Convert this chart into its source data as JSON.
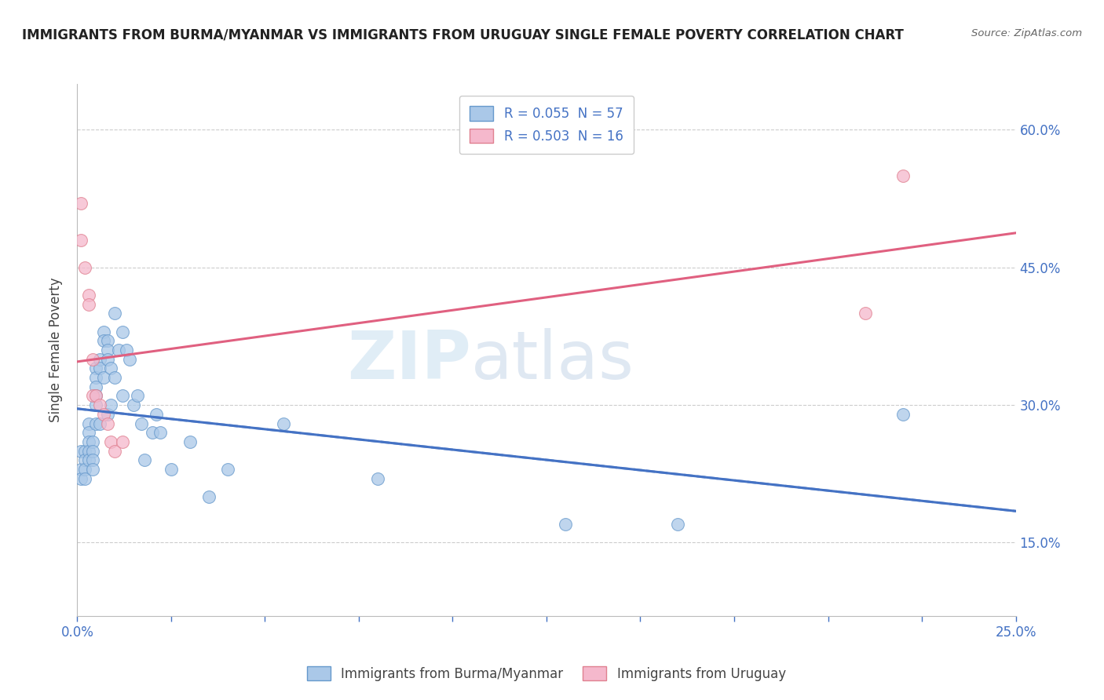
{
  "title": "IMMIGRANTS FROM BURMA/MYANMAR VS IMMIGRANTS FROM URUGUAY SINGLE FEMALE POVERTY CORRELATION CHART",
  "source": "Source: ZipAtlas.com",
  "ylabel": "Single Female Poverty",
  "yaxis_labels": [
    "15.0%",
    "30.0%",
    "45.0%",
    "60.0%"
  ],
  "legend_entries": [
    "R = 0.055  N = 57",
    "R = 0.503  N = 16"
  ],
  "legend_item_labels": [
    "Immigrants from Burma/Myanmar",
    "Immigrants from Uruguay"
  ],
  "watermark_zip": "ZIP",
  "watermark_atlas": "atlas",
  "burma_x": [
    0.001,
    0.001,
    0.001,
    0.002,
    0.002,
    0.002,
    0.002,
    0.003,
    0.003,
    0.003,
    0.003,
    0.003,
    0.004,
    0.004,
    0.004,
    0.004,
    0.005,
    0.005,
    0.005,
    0.005,
    0.005,
    0.005,
    0.006,
    0.006,
    0.006,
    0.007,
    0.007,
    0.007,
    0.008,
    0.008,
    0.008,
    0.008,
    0.009,
    0.009,
    0.01,
    0.01,
    0.011,
    0.012,
    0.012,
    0.013,
    0.014,
    0.015,
    0.016,
    0.017,
    0.018,
    0.02,
    0.021,
    0.022,
    0.025,
    0.03,
    0.035,
    0.04,
    0.055,
    0.08,
    0.13,
    0.16,
    0.22
  ],
  "burma_y": [
    0.25,
    0.23,
    0.22,
    0.25,
    0.24,
    0.23,
    0.22,
    0.28,
    0.27,
    0.26,
    0.25,
    0.24,
    0.26,
    0.25,
    0.24,
    0.23,
    0.34,
    0.33,
    0.32,
    0.31,
    0.3,
    0.28,
    0.35,
    0.34,
    0.28,
    0.38,
    0.37,
    0.33,
    0.37,
    0.36,
    0.35,
    0.29,
    0.34,
    0.3,
    0.4,
    0.33,
    0.36,
    0.38,
    0.31,
    0.36,
    0.35,
    0.3,
    0.31,
    0.28,
    0.24,
    0.27,
    0.29,
    0.27,
    0.23,
    0.26,
    0.2,
    0.23,
    0.28,
    0.22,
    0.17,
    0.17,
    0.29
  ],
  "uruguay_x": [
    0.001,
    0.001,
    0.002,
    0.003,
    0.003,
    0.004,
    0.004,
    0.005,
    0.006,
    0.007,
    0.008,
    0.009,
    0.01,
    0.012,
    0.21,
    0.22
  ],
  "uruguay_y": [
    0.52,
    0.48,
    0.45,
    0.42,
    0.41,
    0.35,
    0.31,
    0.31,
    0.3,
    0.29,
    0.28,
    0.26,
    0.25,
    0.26,
    0.4,
    0.55
  ],
  "xmin": 0.0,
  "xmax": 0.25,
  "ymin": 0.07,
  "ymax": 0.65,
  "color_burma_fill": "#aac8e8",
  "color_burma_edge": "#6699cc",
  "color_uruguay_fill": "#f5b8cc",
  "color_uruguay_edge": "#e08090",
  "color_line_burma": "#4472c4",
  "color_line_uruguay": "#e06080",
  "background_color": "#ffffff",
  "grid_color": "#cccccc",
  "title_color": "#222222",
  "source_color": "#666666",
  "axis_label_color": "#4472c4",
  "ylabel_color": "#444444"
}
